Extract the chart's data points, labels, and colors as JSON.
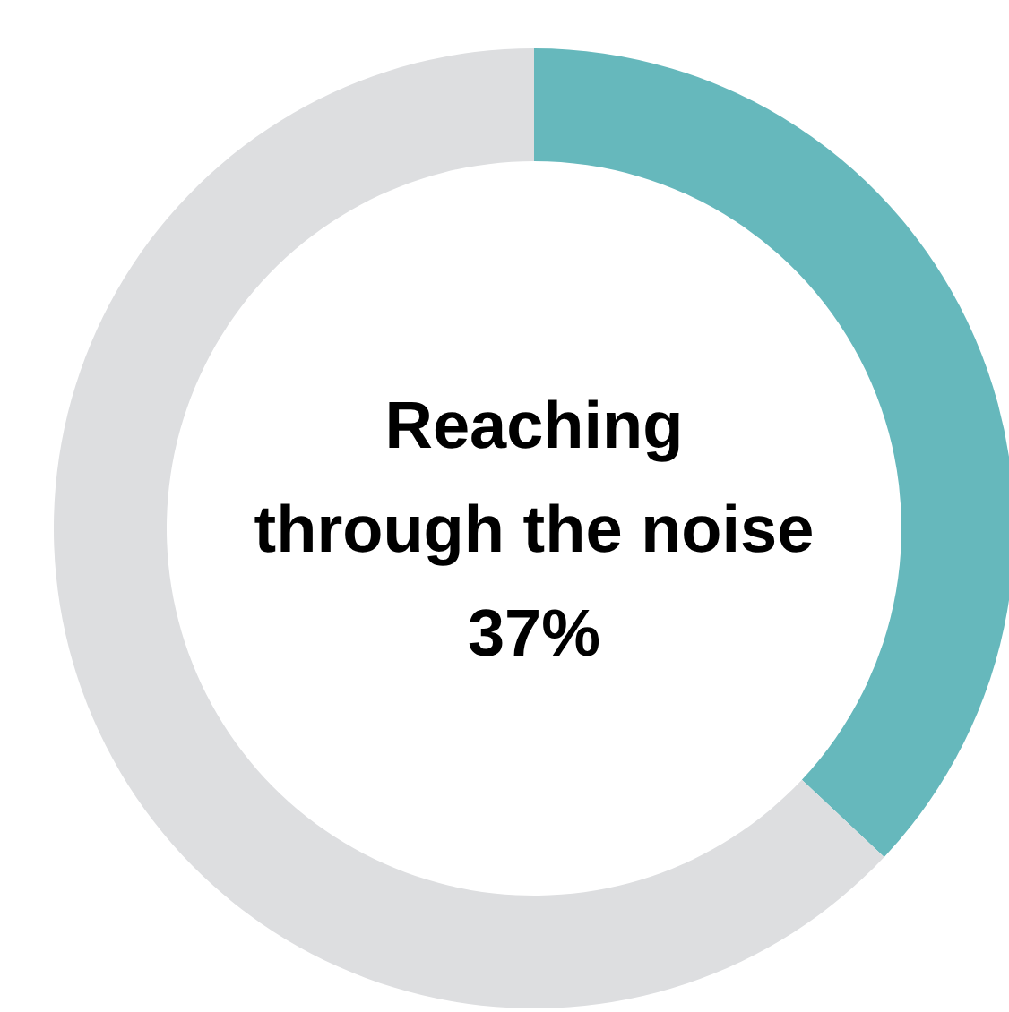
{
  "chart_data": {
    "type": "donut",
    "title": "Reaching\nthrough the noise\n37%",
    "categories": [
      null,
      null
    ],
    "values": [
      37,
      63
    ],
    "colors": [
      "#66b8bc",
      "#dddee0"
    ]
  }
}
